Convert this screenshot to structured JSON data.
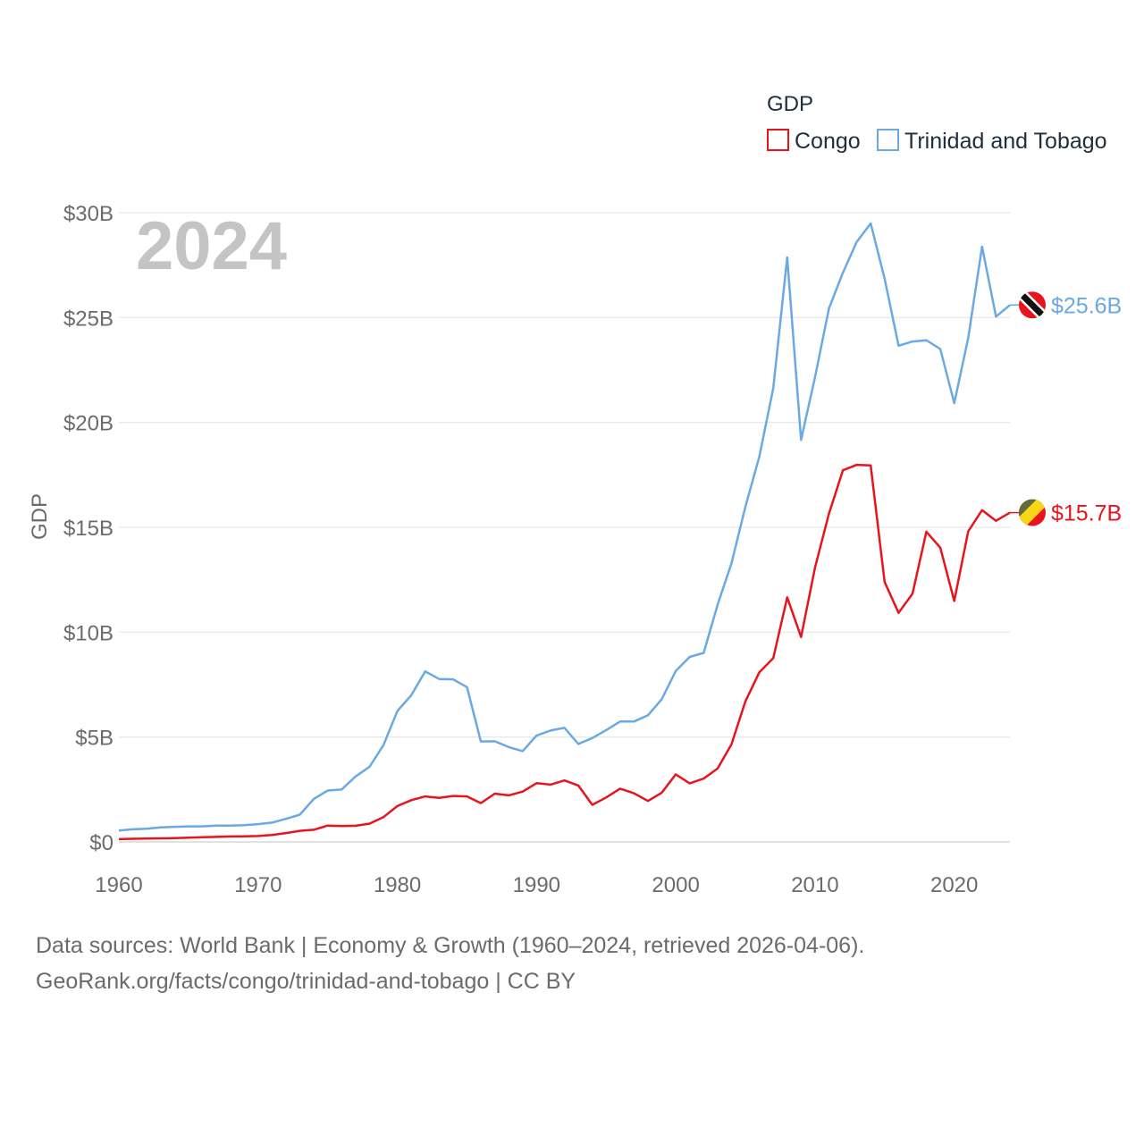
{
  "chart_data": {
    "type": "line",
    "year_label": "2024",
    "xlabel": "",
    "ylabel": "GDP",
    "xlim": [
      1960,
      2024
    ],
    "ylim": [
      0,
      30
    ],
    "xticks": [
      1960,
      1970,
      1980,
      1990,
      2000,
      2010,
      2020
    ],
    "xtick_labels": [
      "1960",
      "1970",
      "1980",
      "1990",
      "2000",
      "2010",
      "2020"
    ],
    "yticks": [
      0,
      5,
      10,
      15,
      20,
      25,
      30
    ],
    "ytick_labels": [
      "$0",
      "$5B",
      "$10B",
      "$15B",
      "$20B",
      "$25B",
      "$30B"
    ],
    "grid": "horizontal",
    "legend": {
      "title": "GDP",
      "position": "top-right",
      "entries": [
        "Congo",
        "Trinidad and Tobago"
      ]
    },
    "x": [
      1960,
      1961,
      1962,
      1963,
      1964,
      1965,
      1966,
      1967,
      1968,
      1969,
      1970,
      1971,
      1972,
      1973,
      1974,
      1975,
      1976,
      1977,
      1978,
      1979,
      1980,
      1981,
      1982,
      1983,
      1984,
      1985,
      1986,
      1987,
      1988,
      1989,
      1990,
      1991,
      1992,
      1993,
      1994,
      1995,
      1996,
      1997,
      1998,
      1999,
      2000,
      2001,
      2002,
      2003,
      2004,
      2005,
      2006,
      2007,
      2008,
      2009,
      2010,
      2011,
      2012,
      2013,
      2014,
      2015,
      2016,
      2017,
      2018,
      2019,
      2020,
      2021,
      2022,
      2023,
      2024
    ],
    "series": [
      {
        "name": "Congo",
        "color": "#e8141b",
        "end_label": "$15.7B",
        "values": [
          0.13,
          0.15,
          0.16,
          0.17,
          0.18,
          0.2,
          0.22,
          0.24,
          0.26,
          0.27,
          0.28,
          0.33,
          0.42,
          0.53,
          0.58,
          0.78,
          0.76,
          0.77,
          0.87,
          1.18,
          1.71,
          1.99,
          2.17,
          2.1,
          2.19,
          2.17,
          1.85,
          2.3,
          2.22,
          2.4,
          2.8,
          2.73,
          2.93,
          2.69,
          1.77,
          2.12,
          2.54,
          2.32,
          1.95,
          2.35,
          3.22,
          2.79,
          3.02,
          3.5,
          4.65,
          6.7,
          8.09,
          8.76,
          11.66,
          9.77,
          13.08,
          15.65,
          17.72,
          17.98,
          17.95,
          12.39,
          10.92,
          11.84,
          14.79,
          14.03,
          11.49,
          14.81,
          15.82,
          15.31,
          15.7
        ]
      },
      {
        "name": "Trinidad and Tobago",
        "color": "#6aa9e3",
        "end_label": "$25.6B",
        "values": [
          0.54,
          0.6,
          0.63,
          0.69,
          0.72,
          0.74,
          0.74,
          0.78,
          0.78,
          0.8,
          0.85,
          0.92,
          1.1,
          1.3,
          2.05,
          2.45,
          2.5,
          3.12,
          3.58,
          4.61,
          6.24,
          6.99,
          8.13,
          7.77,
          7.75,
          7.38,
          4.79,
          4.8,
          4.52,
          4.33,
          5.07,
          5.31,
          5.44,
          4.67,
          4.95,
          5.33,
          5.74,
          5.74,
          6.04,
          6.81,
          8.15,
          8.82,
          9.01,
          11.31,
          13.28,
          15.98,
          18.37,
          21.64,
          27.87,
          19.17,
          22.16,
          25.43,
          27.14,
          28.61,
          29.49,
          26.85,
          23.66,
          23.86,
          23.92,
          23.5,
          20.92,
          24.02,
          28.38,
          25.05,
          25.6
        ]
      }
    ]
  },
  "source": {
    "line1": "Data sources: World Bank | Economy & Growth (1960–2024, retrieved 2026-04-06).",
    "line2": "GeoRank.org/facts/congo/trinidad-and-tobago | CC BY"
  }
}
